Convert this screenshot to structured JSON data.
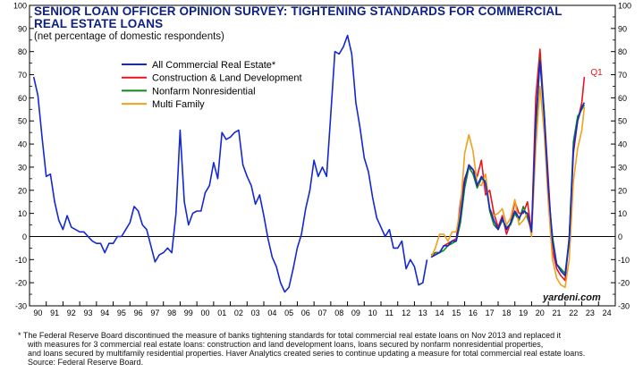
{
  "title_line1": "SENIOR LOAN OFFICER OPINION SURVEY: TIGHTENING STANDARDS FOR COMMERCIAL",
  "title_line2": "REAL ESTATE LOANS",
  "subtitle": "(net percentage of domestic respondents)",
  "brand": "yardeni.com",
  "footnote": {
    "line1": "*  The Federal Reserve Board discontinued the measure of banks tightening standards for total commercial real estate loans on Nov 2013 and replaced it",
    "line2": "with measures for 3 commercial real estate loans: construction and land development loans, loans secured by nonfarm nonresidential properties,",
    "line3": "and loans secured by multifamily residential properties. Haver Analytics created series to continue updating a measure for total commercial real estate loans.",
    "line4": "Source: Federal Reserve Board."
  },
  "chart_data": {
    "type": "line",
    "ylim": [
      -30,
      100
    ],
    "yticks": [
      -30,
      -20,
      -10,
      0,
      10,
      20,
      30,
      40,
      50,
      60,
      70,
      80,
      90,
      100
    ],
    "xlim": [
      1990,
      2025
    ],
    "xticks": [
      "90",
      "91",
      "92",
      "93",
      "94",
      "95",
      "96",
      "97",
      "98",
      "99",
      "00",
      "01",
      "02",
      "03",
      "04",
      "05",
      "06",
      "07",
      "08",
      "09",
      "10",
      "11",
      "12",
      "13",
      "14",
      "15",
      "16",
      "17",
      "18",
      "19",
      "20",
      "21",
      "22",
      "23",
      "24"
    ],
    "annotation": {
      "text": "Q1",
      "x": 2023.2,
      "y": 71,
      "color": "#e8141c"
    },
    "legend_position": "top-left",
    "series": [
      {
        "name": "All Commercial Real Estate*",
        "color": "#1428d2",
        "points": [
          [
            1990.25,
            69
          ],
          [
            1990.5,
            61
          ],
          [
            1990.75,
            43
          ],
          [
            1991,
            26
          ],
          [
            1991.25,
            27
          ],
          [
            1991.5,
            15
          ],
          [
            1991.75,
            7
          ],
          [
            1992,
            3
          ],
          [
            1992.25,
            9
          ],
          [
            1992.5,
            4
          ],
          [
            1992.75,
            3
          ],
          [
            1993,
            2
          ],
          [
            1993.25,
            2
          ],
          [
            1993.5,
            0
          ],
          [
            1993.75,
            -2
          ],
          [
            1994,
            -3
          ],
          [
            1994.25,
            -3
          ],
          [
            1994.5,
            -7
          ],
          [
            1994.75,
            -3
          ],
          [
            1995,
            -3
          ],
          [
            1995.25,
            0
          ],
          [
            1995.5,
            0
          ],
          [
            1995.75,
            3
          ],
          [
            1996,
            6
          ],
          [
            1996.25,
            13
          ],
          [
            1996.5,
            11
          ],
          [
            1996.75,
            5
          ],
          [
            1997,
            3
          ],
          [
            1997.25,
            -4
          ],
          [
            1997.5,
            -11
          ],
          [
            1997.75,
            -8
          ],
          [
            1998,
            -7
          ],
          [
            1998.25,
            -5
          ],
          [
            1998.5,
            -7
          ],
          [
            1998.75,
            10
          ],
          [
            1999,
            46
          ],
          [
            1999.25,
            15
          ],
          [
            1999.5,
            5
          ],
          [
            1999.75,
            10
          ],
          [
            2000,
            11
          ],
          [
            2000.25,
            11
          ],
          [
            2000.5,
            19
          ],
          [
            2000.75,
            22
          ],
          [
            2001,
            32
          ],
          [
            2001.25,
            25
          ],
          [
            2001.5,
            45
          ],
          [
            2001.75,
            42
          ],
          [
            2002,
            43
          ],
          [
            2002.25,
            45
          ],
          [
            2002.5,
            46
          ],
          [
            2002.75,
            31
          ],
          [
            2003,
            26
          ],
          [
            2003.25,
            22
          ],
          [
            2003.5,
            14
          ],
          [
            2003.75,
            18
          ],
          [
            2004,
            9
          ],
          [
            2004.25,
            -1
          ],
          [
            2004.5,
            -9
          ],
          [
            2004.75,
            -13
          ],
          [
            2005,
            -20
          ],
          [
            2005.25,
            -24
          ],
          [
            2005.5,
            -22
          ],
          [
            2005.75,
            -14
          ],
          [
            2006,
            -5
          ],
          [
            2006.25,
            1
          ],
          [
            2006.5,
            12
          ],
          [
            2006.75,
            20
          ],
          [
            2007,
            33
          ],
          [
            2007.25,
            26
          ],
          [
            2007.5,
            30
          ],
          [
            2007.75,
            26
          ],
          [
            2008,
            53
          ],
          [
            2008.25,
            80
          ],
          [
            2008.5,
            79
          ],
          [
            2008.75,
            82
          ],
          [
            2009,
            87
          ],
          [
            2009.25,
            79
          ],
          [
            2009.5,
            58
          ],
          [
            2009.75,
            47
          ],
          [
            2010,
            34
          ],
          [
            2010.25,
            28
          ],
          [
            2010.5,
            17
          ],
          [
            2010.75,
            8
          ],
          [
            2011,
            4
          ],
          [
            2011.25,
            0
          ],
          [
            2011.5,
            3
          ],
          [
            2011.75,
            -5
          ],
          [
            2012,
            -5
          ],
          [
            2012.25,
            -2
          ],
          [
            2012.5,
            -14
          ],
          [
            2012.75,
            -10
          ],
          [
            2013,
            -13
          ],
          [
            2013.25,
            -21
          ],
          [
            2013.5,
            -20
          ],
          [
            2013.75,
            -10
          ]
        ]
      },
      {
        "name": "Construction & Land Development",
        "color": "#e8141c",
        "points": [
          [
            2014,
            -9
          ],
          [
            2014.25,
            -7
          ],
          [
            2014.5,
            -7
          ],
          [
            2014.75,
            -4
          ],
          [
            2015,
            -3
          ],
          [
            2015.25,
            -2
          ],
          [
            2015.5,
            -1
          ],
          [
            2015.75,
            15
          ],
          [
            2016,
            25
          ],
          [
            2016.25,
            30
          ],
          [
            2016.5,
            29
          ],
          [
            2016.75,
            26
          ],
          [
            2017,
            33
          ],
          [
            2017.25,
            18
          ],
          [
            2017.5,
            20
          ],
          [
            2017.75,
            10
          ],
          [
            2018,
            4
          ],
          [
            2018.25,
            9
          ],
          [
            2018.5,
            1
          ],
          [
            2018.75,
            6
          ],
          [
            2019,
            15
          ],
          [
            2019.25,
            10
          ],
          [
            2019.5,
            10
          ],
          [
            2019.75,
            15
          ],
          [
            2020,
            2
          ],
          [
            2020.25,
            60
          ],
          [
            2020.5,
            81
          ],
          [
            2020.75,
            54
          ],
          [
            2021,
            25
          ],
          [
            2021.25,
            -6
          ],
          [
            2021.5,
            -14
          ],
          [
            2021.75,
            -17
          ],
          [
            2022,
            -19
          ],
          [
            2022.25,
            0
          ],
          [
            2022.5,
            36
          ],
          [
            2022.75,
            50
          ],
          [
            2023,
            58
          ],
          [
            2023.15,
            69
          ]
        ]
      },
      {
        "name": "Nonfarm Nonresidential",
        "color": "#11881c",
        "points": [
          [
            2014,
            -8
          ],
          [
            2014.25,
            -7
          ],
          [
            2014.5,
            -7
          ],
          [
            2014.75,
            -6
          ],
          [
            2015,
            -4
          ],
          [
            2015.25,
            -3
          ],
          [
            2015.5,
            -2
          ],
          [
            2015.75,
            6
          ],
          [
            2016,
            21
          ],
          [
            2016.25,
            30
          ],
          [
            2016.5,
            27
          ],
          [
            2016.75,
            21
          ],
          [
            2017,
            25
          ],
          [
            2017.25,
            24
          ],
          [
            2017.5,
            11
          ],
          [
            2017.75,
            5
          ],
          [
            2018,
            3
          ],
          [
            2018.25,
            7
          ],
          [
            2018.5,
            4
          ],
          [
            2018.75,
            5
          ],
          [
            2019,
            10
          ],
          [
            2019.25,
            7
          ],
          [
            2019.5,
            13
          ],
          [
            2019.75,
            8
          ],
          [
            2020,
            2
          ],
          [
            2020.25,
            45
          ],
          [
            2020.5,
            77
          ],
          [
            2020.75,
            54
          ],
          [
            2021,
            19
          ],
          [
            2021.25,
            0
          ],
          [
            2021.5,
            -12
          ],
          [
            2021.75,
            -14
          ],
          [
            2022,
            -16
          ],
          [
            2022.25,
            -1
          ],
          [
            2022.5,
            41
          ],
          [
            2022.75,
            52
          ],
          [
            2023,
            55
          ],
          [
            2023.15,
            57
          ]
        ]
      },
      {
        "name": "Multi Family",
        "color": "#f0a01e",
        "points": [
          [
            2014,
            -9
          ],
          [
            2014.25,
            -5
          ],
          [
            2014.5,
            1
          ],
          [
            2014.75,
            1
          ],
          [
            2015,
            -2
          ],
          [
            2015.25,
            2
          ],
          [
            2015.5,
            2
          ],
          [
            2015.75,
            12
          ],
          [
            2016,
            36
          ],
          [
            2016.25,
            44
          ],
          [
            2016.5,
            37
          ],
          [
            2016.75,
            23
          ],
          [
            2017,
            22
          ],
          [
            2017.25,
            27
          ],
          [
            2017.5,
            12
          ],
          [
            2017.75,
            9
          ],
          [
            2018,
            10
          ],
          [
            2018.25,
            12
          ],
          [
            2018.5,
            5
          ],
          [
            2018.75,
            8
          ],
          [
            2019,
            16
          ],
          [
            2019.25,
            5
          ],
          [
            2019.5,
            7
          ],
          [
            2019.75,
            10
          ],
          [
            2020,
            0
          ],
          [
            2020.25,
            38
          ],
          [
            2020.5,
            65
          ],
          [
            2020.75,
            45
          ],
          [
            2021,
            15
          ],
          [
            2021.25,
            -10
          ],
          [
            2021.5,
            -18
          ],
          [
            2021.75,
            -21
          ],
          [
            2022,
            -22
          ],
          [
            2022.25,
            -10
          ],
          [
            2022.5,
            24
          ],
          [
            2022.75,
            38
          ],
          [
            2023,
            46
          ],
          [
            2023.15,
            56
          ]
        ]
      },
      {
        "name": "All Commercial Real Estate (Haver)",
        "color": "#1428d2",
        "legend": false,
        "points": [
          [
            2014,
            -9
          ],
          [
            2014.25,
            -8
          ],
          [
            2014.5,
            -7
          ],
          [
            2014.75,
            -4
          ],
          [
            2015,
            -4
          ],
          [
            2015.25,
            -2
          ],
          [
            2015.5,
            -2
          ],
          [
            2015.75,
            9
          ],
          [
            2016,
            24
          ],
          [
            2016.25,
            31
          ],
          [
            2016.5,
            29
          ],
          [
            2016.75,
            22
          ],
          [
            2017,
            26
          ],
          [
            2017.25,
            23
          ],
          [
            2017.5,
            12
          ],
          [
            2017.75,
            7
          ],
          [
            2018,
            3
          ],
          [
            2018.25,
            8
          ],
          [
            2018.5,
            3
          ],
          [
            2018.75,
            6
          ],
          [
            2019,
            11
          ],
          [
            2019.25,
            8
          ],
          [
            2019.5,
            11
          ],
          [
            2019.75,
            10
          ],
          [
            2020,
            2
          ],
          [
            2020.25,
            50
          ],
          [
            2020.5,
            76
          ],
          [
            2020.75,
            52
          ],
          [
            2021,
            21
          ],
          [
            2021.25,
            -2
          ],
          [
            2021.5,
            -12
          ],
          [
            2021.75,
            -15
          ],
          [
            2022,
            -17
          ],
          [
            2022.25,
            -2
          ],
          [
            2022.5,
            38
          ],
          [
            2022.75,
            50
          ],
          [
            2023,
            56
          ],
          [
            2023.15,
            58
          ]
        ]
      }
    ]
  }
}
